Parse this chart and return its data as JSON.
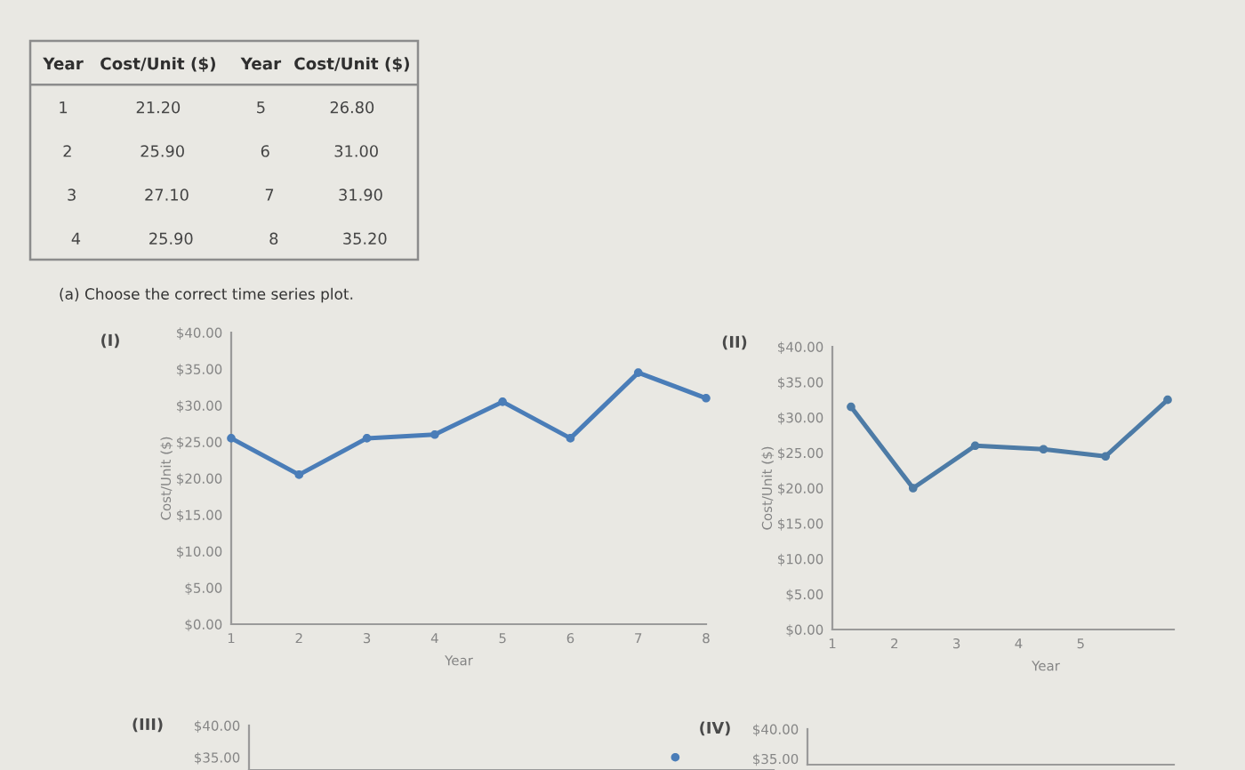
{
  "chart_data": [
    {
      "type": "other",
      "annotations": [
        "Year",
        "Cost/Unit ($)",
        "Year",
        "Cost/Unit ($)",
        "1",
        "21.20",
        "5",
        "26.80",
        "2",
        "25.90",
        "6",
        "31.00",
        "3",
        "27.10",
        "7",
        "31.90",
        "4",
        "25.90",
        "8",
        "35.20"
      ]
    },
    {
      "type": "line",
      "title": "(I)",
      "xlabel": "Year",
      "ylabel": "Cost/Unit ($)",
      "annotations": [
        "(a) Choose the correct time series plot."
      ],
      "x": [
        1,
        2,
        3,
        4,
        5,
        6,
        7,
        8
      ],
      "series": [
        {
          "color": "#4a7db8",
          "values": [
            25.5,
            20.5,
            25.5,
            26,
            30.5,
            25.5,
            34.5,
            31
          ]
        }
      ],
      "xlim": [
        1,
        8
      ],
      "xticks": [
        1,
        2,
        3,
        4,
        5,
        6,
        7,
        8
      ],
      "ylim": [
        0,
        40
      ],
      "yticks": [
        {
          "value": 0,
          "label": "$0.00"
        },
        {
          "value": 5,
          "label": "$5.00"
        },
        {
          "value": 10,
          "label": "$10.00"
        },
        {
          "value": 15,
          "label": "$15.00"
        },
        {
          "value": 20,
          "label": "$20.00"
        },
        {
          "value": 25,
          "label": "$25.00"
        },
        {
          "value": 30,
          "label": "$30.00"
        },
        {
          "value": 35,
          "label": "$35.00"
        },
        {
          "value": 40,
          "label": "$40.00"
        }
      ],
      "marker": "circle"
    },
    {
      "type": "line",
      "title": "(II)",
      "xlabel": "Year",
      "ylabel": "Cost/Unit ($)",
      "x": [
        1.3,
        2.3,
        3.3,
        4.4,
        5.4,
        6.4
      ],
      "series": [
        {
          "color": "#4d7ba6",
          "values": [
            31.5,
            20,
            26,
            25.5,
            24.5,
            32.5
          ]
        }
      ],
      "xlim": [
        1,
        6.5
      ],
      "xticks": [
        1,
        2,
        3,
        4,
        5
      ],
      "ylim": [
        0,
        40
      ],
      "yticks": [
        {
          "value": 0,
          "label": "$0.00"
        },
        {
          "value": 5,
          "label": "$5.00"
        },
        {
          "value": 10,
          "label": "$10.00"
        },
        {
          "value": 15,
          "label": "$15.00"
        },
        {
          "value": 20,
          "label": "$20.00"
        },
        {
          "value": 25,
          "label": "$25.00"
        },
        {
          "value": 30,
          "label": "$30.00"
        },
        {
          "value": 35,
          "label": "$35.00"
        },
        {
          "value": 40,
          "label": "$40.00"
        }
      ],
      "marker": "circle"
    },
    {
      "type": "line",
      "title": "(III)",
      "categories": [
        null,
        null,
        null,
        null,
        null,
        null,
        null,
        null
      ],
      "series": [
        {
          "color": "#4a7db8",
          "values": [
            null,
            null,
            null,
            null,
            null,
            null,
            35,
            null
          ]
        }
      ],
      "ylim": [
        33,
        40
      ],
      "yticks": [
        {
          "value": 35,
          "label": "$35.00"
        },
        {
          "value": 40,
          "label": "$40.00"
        }
      ],
      "tick_labels": "y",
      "marker": "circle"
    },
    {
      "type": "line",
      "title": "(IV)",
      "categories": [
        null,
        null,
        null,
        null,
        null,
        null,
        null,
        null
      ],
      "ylim": [
        34,
        40
      ],
      "yticks": [
        {
          "value": 35,
          "label": "$35.00"
        },
        {
          "value": 40,
          "label": "$40.00"
        }
      ],
      "tick_labels": "y"
    }
  ]
}
